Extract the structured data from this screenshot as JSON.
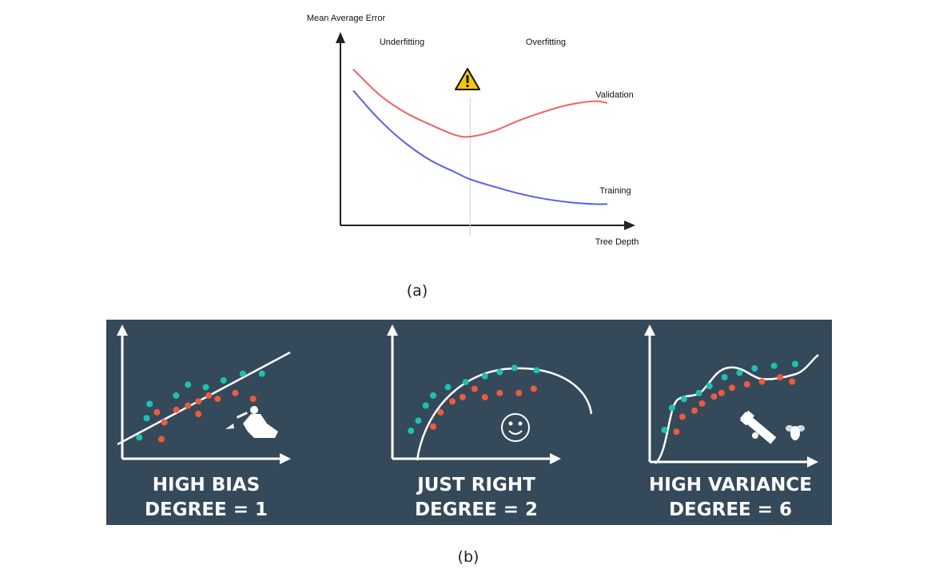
{
  "figure_a": {
    "caption": "(a)",
    "chart_data": {
      "type": "line",
      "ylabel": "Mean Average Error",
      "xlabel": "Tree Depth",
      "region_labels": [
        "Underfitting",
        "Overfitting"
      ],
      "warning_icon": "warning-triangle-icon",
      "grid": false,
      "series": [
        {
          "name": "Validation",
          "color": "#f06262",
          "x": [
            0.0,
            0.1,
            0.2,
            0.3,
            0.4,
            0.46,
            0.55,
            0.65,
            0.75,
            0.85,
            0.95,
            1.0
          ],
          "y": [
            0.88,
            0.74,
            0.64,
            0.57,
            0.51,
            0.5,
            0.53,
            0.59,
            0.64,
            0.68,
            0.7,
            0.69
          ]
        },
        {
          "name": "Training",
          "color": "#5a5ef0",
          "x": [
            0.0,
            0.1,
            0.2,
            0.3,
            0.4,
            0.46,
            0.55,
            0.65,
            0.75,
            0.85,
            0.95,
            1.0
          ],
          "y": [
            0.76,
            0.6,
            0.47,
            0.37,
            0.3,
            0.26,
            0.22,
            0.18,
            0.15,
            0.13,
            0.12,
            0.12
          ]
        }
      ],
      "divider_x": 0.46
    }
  },
  "figure_b": {
    "caption": "(b)",
    "background": "#34495a",
    "colors": {
      "teal": "#1ac3b0",
      "red": "#f05a3c",
      "line": "#ffffff"
    },
    "chart_data": [
      {
        "type": "scatter",
        "title_line1": "HIGH BIAS",
        "title_line2": "DEGREE = 1",
        "icon": "hunter-icon",
        "teal": [
          [
            0.05,
            0.12
          ],
          [
            0.1,
            0.35
          ],
          [
            0.12,
            0.52
          ],
          [
            0.3,
            0.62
          ],
          [
            0.38,
            0.75
          ],
          [
            0.5,
            0.72
          ],
          [
            0.62,
            0.8
          ],
          [
            0.75,
            0.88
          ],
          [
            0.88,
            0.88
          ]
        ],
        "red": [
          [
            0.17,
            0.42
          ],
          [
            0.22,
            0.3
          ],
          [
            0.3,
            0.45
          ],
          [
            0.38,
            0.5
          ],
          [
            0.45,
            0.55
          ],
          [
            0.52,
            0.62
          ],
          [
            0.58,
            0.58
          ],
          [
            0.7,
            0.65
          ],
          [
            0.82,
            0.58
          ],
          [
            0.2,
            0.1
          ],
          [
            0.45,
            0.4
          ]
        ]
      },
      {
        "type": "scatter",
        "title_line1": "JUST RIGHT",
        "title_line2": "DEGREE = 2",
        "icon": "smiley-icon",
        "teal": [
          [
            0.05,
            0.2
          ],
          [
            0.1,
            0.32
          ],
          [
            0.15,
            0.5
          ],
          [
            0.2,
            0.62
          ],
          [
            0.3,
            0.72
          ],
          [
            0.42,
            0.78
          ],
          [
            0.55,
            0.85
          ],
          [
            0.65,
            0.9
          ],
          [
            0.75,
            0.95
          ],
          [
            0.9,
            0.92
          ]
        ],
        "red": [
          [
            0.2,
            0.25
          ],
          [
            0.25,
            0.42
          ],
          [
            0.33,
            0.55
          ],
          [
            0.4,
            0.6
          ],
          [
            0.48,
            0.7
          ],
          [
            0.55,
            0.6
          ],
          [
            0.65,
            0.65
          ],
          [
            0.78,
            0.65
          ],
          [
            0.88,
            0.7
          ]
        ]
      },
      {
        "type": "scatter",
        "title_line1": "HIGH VARIANCE",
        "title_line2": "DEGREE = 6",
        "icon": "bazooka-fly-icon",
        "teal": [
          [
            0.05,
            0.2
          ],
          [
            0.1,
            0.45
          ],
          [
            0.18,
            0.55
          ],
          [
            0.28,
            0.62
          ],
          [
            0.35,
            0.7
          ],
          [
            0.45,
            0.8
          ],
          [
            0.55,
            0.85
          ],
          [
            0.65,
            0.9
          ],
          [
            0.78,
            0.93
          ],
          [
            0.92,
            0.95
          ]
        ],
        "red": [
          [
            0.13,
            0.18
          ],
          [
            0.17,
            0.35
          ],
          [
            0.25,
            0.42
          ],
          [
            0.3,
            0.5
          ],
          [
            0.38,
            0.58
          ],
          [
            0.43,
            0.62
          ],
          [
            0.5,
            0.68
          ],
          [
            0.6,
            0.72
          ],
          [
            0.7,
            0.75
          ],
          [
            0.82,
            0.8
          ],
          [
            0.9,
            0.75
          ]
        ]
      }
    ]
  }
}
